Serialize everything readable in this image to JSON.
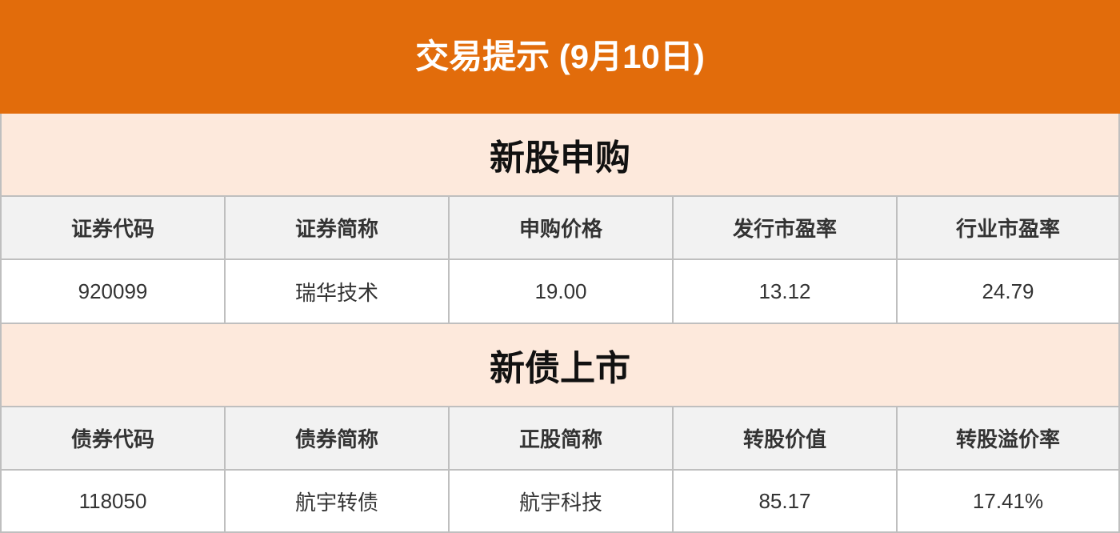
{
  "title": "交易提示 (9月10日)",
  "ipo": {
    "heading": "新股申购",
    "columns": [
      "证券代码",
      "证券简称",
      "申购价格",
      "发行市盈率",
      "行业市盈率"
    ],
    "row": [
      "920099",
      "瑞华技术",
      "19.00",
      "13.12",
      "24.79"
    ]
  },
  "bond": {
    "heading": "新债上市",
    "columns": [
      "债券代码",
      "债券简称",
      "正股简称",
      "转股价值",
      "转股溢价率"
    ],
    "row": [
      "118050",
      "航宇转债",
      "航宇科技",
      "85.17",
      "17.41%"
    ]
  }
}
